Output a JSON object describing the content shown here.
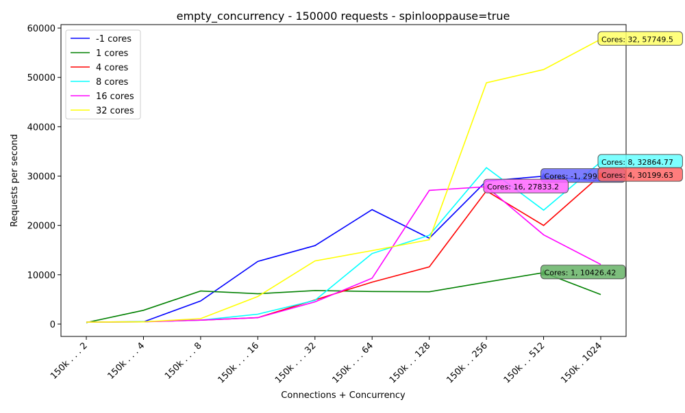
{
  "chart_data": {
    "type": "line",
    "title": "empty_concurrency - 150000 requests - spinlooppause=true",
    "xlabel": "Connections + Concurrency",
    "ylabel": "Requests per second",
    "categories": [
      "150k . . . 2",
      "150k . . . 4",
      "150k . . . 8",
      "150k . . . 16",
      "150k . . . 32",
      "150k . . . 64",
      "150k . . 128",
      "150k . . 256",
      "150k . . 512",
      "150k . 1024"
    ],
    "ylim": [
      -2500,
      60700
    ],
    "yticks": [
      0,
      10000,
      20000,
      30000,
      40000,
      50000,
      60000
    ],
    "grid": false,
    "legend_position": "top-left",
    "series": [
      {
        "name": "-1 cores",
        "color": "#0000ff",
        "values": [
          400,
          450,
          4700,
          12700,
          15900,
          23200,
          17400,
          29000,
          29977,
          29000
        ]
      },
      {
        "name": "1 cores",
        "color": "#008000",
        "values": [
          300,
          2800,
          6700,
          6150,
          6800,
          6600,
          6550,
          8500,
          10426.42,
          6000
        ]
      },
      {
        "name": "4 cores",
        "color": "#ff0000",
        "values": [
          400,
          500,
          800,
          1300,
          4900,
          8500,
          11600,
          27000,
          20000,
          30199.63
        ]
      },
      {
        "name": "8 cores",
        "color": "#00ffff",
        "values": [
          400,
          500,
          800,
          2000,
          4800,
          14300,
          18000,
          31700,
          23100,
          32864.77
        ]
      },
      {
        "name": "16 cores",
        "color": "#ff00ff",
        "values": [
          400,
          450,
          800,
          1300,
          4500,
          9300,
          27100,
          27833.2,
          18100,
          12100
        ]
      },
      {
        "name": "32 cores",
        "color": "#ffff00",
        "values": [
          400,
          450,
          1100,
          5600,
          12800,
          14900,
          17100,
          48900,
          51600,
          57749.5
        ]
      }
    ],
    "annotations": [
      {
        "series": 5,
        "index": 9,
        "text": "Cores: 32, 57749.5",
        "fill": "#ffff66"
      },
      {
        "series": 3,
        "index": 9,
        "text": "Cores: 8, 32864.77",
        "fill": "#66ffff"
      },
      {
        "series": 0,
        "index": 8,
        "text": "Cores: -1, 29977.0",
        "fill": "#6666ff"
      },
      {
        "series": 2,
        "index": 9,
        "text": "Cores: 4, 30199.63",
        "fill": "#ff6666"
      },
      {
        "series": 4,
        "index": 7,
        "text": "Cores: 16, 27833.2",
        "fill": "#ff66ff"
      },
      {
        "series": 1,
        "index": 8,
        "text": "Cores: 1, 10426.42",
        "fill": "#66b366"
      }
    ]
  }
}
